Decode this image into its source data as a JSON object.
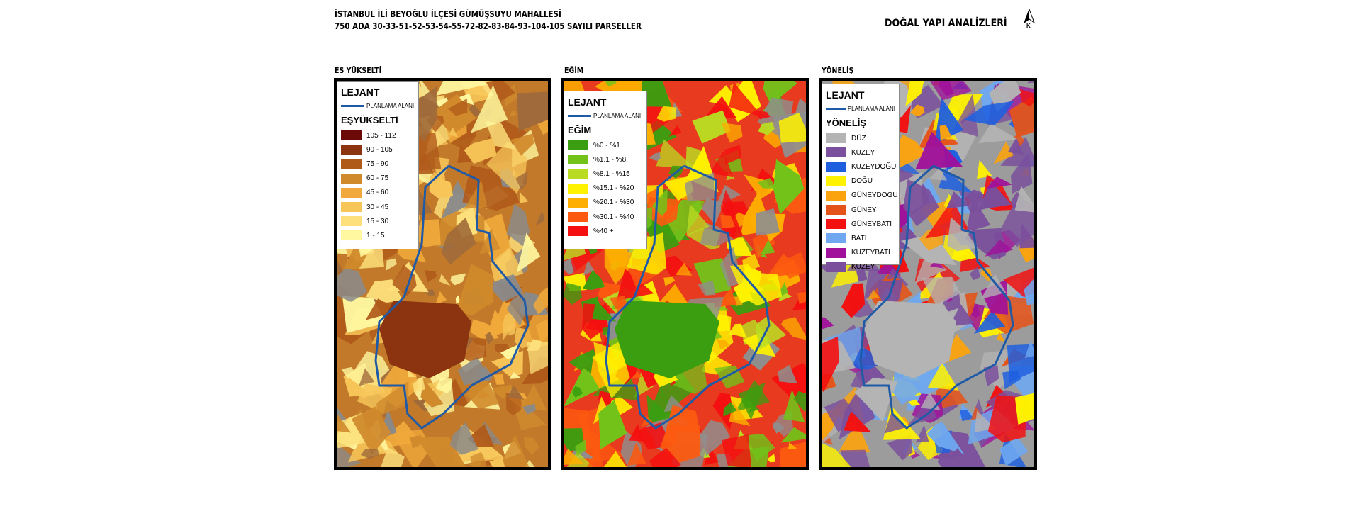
{
  "header": {
    "line1": "İSTANBUL İLİ BEYOĞLU İLÇESİ GÜMÜŞSUYU MAHALLESİ",
    "line2": "750 ADA 30-33-51-52-53-54-55-72-82-83-84-93-104-105 SAYILI PARSELLER",
    "right_title": "DOĞAL YAPI ANALİZLERİ",
    "north_label": "K"
  },
  "panels": [
    {
      "title": "EŞ YÜKSELTİ",
      "legend": {
        "title": "LEJANT",
        "planning_label": "PLANLAMA ALANI",
        "heading": "EŞYÜKSELTİ",
        "items": [
          {
            "label": "105 - 112",
            "color": "#6b0a07"
          },
          {
            "label": "90 - 105",
            "color": "#8c3410"
          },
          {
            "label": "75 - 90",
            "color": "#b05a1a"
          },
          {
            "label": "60 - 75",
            "color": "#d08a2c"
          },
          {
            "label": "45 - 60",
            "color": "#f0a93a"
          },
          {
            "label": "30 - 45",
            "color": "#f7c558"
          },
          {
            "label": "15 - 30",
            "color": "#fde07c"
          },
          {
            "label": "1 - 15",
            "color": "#fff8a0"
          }
        ]
      }
    },
    {
      "title": "EĞİM",
      "legend": {
        "title": "LEJANT",
        "planning_label": "PLANLAMA ALANI",
        "heading": "EĞİM",
        "items": [
          {
            "label": "%0 - %1",
            "color": "#3a9e10"
          },
          {
            "label": "%1.1 - %8",
            "color": "#72c21a"
          },
          {
            "label": "%8.1 - %15",
            "color": "#b9dc22"
          },
          {
            "label": "%15.1 - %20",
            "color": "#fff200"
          },
          {
            "label": "%20.1 - %30",
            "color": "#fdae00"
          },
          {
            "label": "%30.1 - %40",
            "color": "#fc5a10"
          },
          {
            "label": "%40 +",
            "color": "#f40f10"
          }
        ]
      }
    },
    {
      "title": "YÖNELİŞ",
      "legend": {
        "title": "LEJANT",
        "planning_label": "PLANLAMA ALANI",
        "heading": "YÖNELİŞ",
        "items": [
          {
            "label": "DÜZ",
            "color": "#b4b4b4"
          },
          {
            "label": "KUZEY",
            "color": "#7a4f9c"
          },
          {
            "label": "KUZEYDOĞU",
            "color": "#1e5fe0"
          },
          {
            "label": "DOĞU",
            "color": "#fff200"
          },
          {
            "label": "GÜNEYDOĞU",
            "color": "#fba30e"
          },
          {
            "label": "GÜNEY",
            "color": "#e4541a"
          },
          {
            "label": "GÜNEYBATI",
            "color": "#f31010"
          },
          {
            "label": "BATI",
            "color": "#6fa8f0"
          },
          {
            "label": "KUZEYBATI",
            "color": "#a0109a"
          },
          {
            "label": "KUZEY",
            "color": "#7a4f9c"
          }
        ]
      }
    }
  ],
  "colors": {
    "planning_boundary": "#1f5aa6",
    "elevation_base": "#c27a2a",
    "slope_base": "#e83a1e",
    "aspect_base": "#9c9c9c"
  }
}
